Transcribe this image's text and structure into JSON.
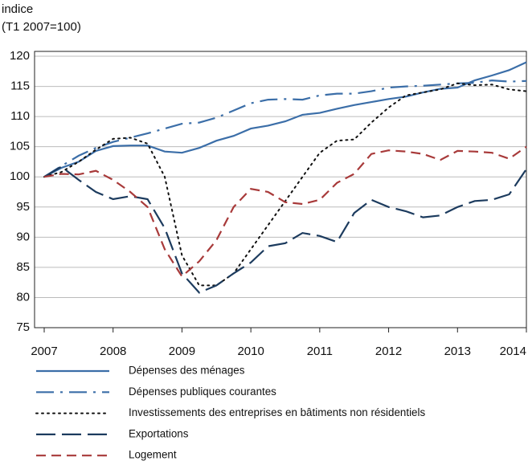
{
  "chart_data": {
    "type": "line",
    "ylabel": [
      "indice",
      "(T1 2007=100)"
    ],
    "x": [
      2007,
      2007.25,
      2007.5,
      2007.75,
      2008,
      2008.25,
      2008.5,
      2008.75,
      2009,
      2009.25,
      2009.5,
      2009.75,
      2010,
      2010.25,
      2010.5,
      2010.75,
      2011,
      2011.25,
      2011.5,
      2011.75,
      2012,
      2012.25,
      2012.5,
      2012.75,
      2013,
      2013.25,
      2013.5,
      2013.75,
      2014
    ],
    "series": [
      {
        "name": "Dépenses des ménages",
        "color": "#3b6ea8",
        "dash": "solid",
        "values": [
          100,
          101.5,
          102.5,
          104.3,
          105.1,
          105.2,
          105.2,
          104.2,
          104,
          104.8,
          106,
          106.8,
          108,
          108.5,
          109.2,
          110.3,
          110.6,
          111.3,
          111.9,
          112.4,
          112.9,
          113.3,
          114,
          114.6,
          114.8,
          116,
          116.8,
          117.7,
          119
        ]
      },
      {
        "name": "Dépenses publiques courantes",
        "color": "#3b6ea8",
        "dash": "dashdot",
        "values": [
          100,
          101.8,
          103.5,
          104.8,
          105.8,
          106.5,
          107.2,
          108,
          108.8,
          109,
          109.8,
          111,
          112.2,
          112.8,
          112.9,
          112.8,
          113.5,
          113.8,
          113.8,
          114.2,
          114.8,
          115,
          115.1,
          115.3,
          115.5,
          115.6,
          116,
          115.8,
          115.9
        ]
      },
      {
        "name": "Investissements des entreprises en bâtiments non résidentiels",
        "color": "#111111",
        "dash": "dotted",
        "values": [
          100,
          100.8,
          102.5,
          104.5,
          106.3,
          106.5,
          105.5,
          100,
          87,
          82,
          82,
          84,
          88,
          92,
          96,
          100,
          104,
          106,
          106.2,
          109,
          111.5,
          113.5,
          114,
          114.5,
          115.5,
          115.2,
          115.3,
          114.5,
          114.2
        ]
      },
      {
        "name": "Exportations",
        "color": "#1c3b5e",
        "dash": "longdash",
        "values": [
          100,
          101.7,
          99.5,
          97.5,
          96.3,
          96.8,
          96.3,
          91.5,
          84,
          80.8,
          82,
          84,
          85.8,
          88.5,
          89,
          90.7,
          90.2,
          89.2,
          94,
          96.2,
          95,
          94.3,
          93.3,
          93.6,
          95,
          96,
          96.2,
          97.1,
          101.3
        ]
      },
      {
        "name": "Logement",
        "color": "#a83a3a",
        "dash": "dashed",
        "values": [
          100,
          100.5,
          100.4,
          101,
          99.5,
          97.5,
          95,
          88,
          83.5,
          86,
          89.5,
          95,
          98,
          97.5,
          95.8,
          95.5,
          96.2,
          99,
          100.5,
          103.8,
          104.4,
          104.2,
          103.8,
          102.8,
          104.3,
          104.2,
          104,
          103,
          105
        ]
      }
    ],
    "xlim": [
      2006.86,
      2014
    ],
    "xticks": [
      2007,
      2008,
      2009,
      2010,
      2011,
      2012,
      2013,
      2014
    ],
    "ylim": [
      75,
      120.8
    ],
    "yticks": [
      75,
      80,
      85,
      90,
      95,
      100,
      105,
      110,
      115,
      120
    ],
    "grid": true
  }
}
